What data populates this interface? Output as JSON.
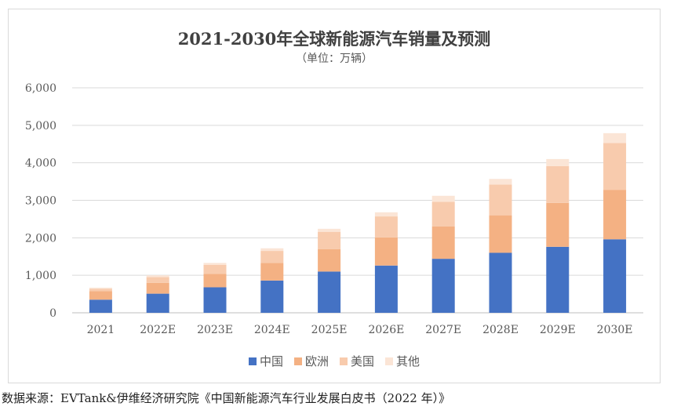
{
  "source_note": "数据来源：EVTank&伊维经济研究院《中国新能源汽车行业发展白皮书（2022 年）》",
  "colors": {
    "china": "#4472C4",
    "europe": "#F4B183",
    "usa": "#F8CBAD",
    "other": "#FBE5D6",
    "grid": "#d9d9d9",
    "axis": "#bfbfbf"
  },
  "chart_data": {
    "type": "bar",
    "stacked": true,
    "title": "2021-2030年全球新能源汽车销量及预测",
    "subtitle": "（单位：万辆）",
    "xlabel": "",
    "ylabel": "",
    "ylim": [
      0,
      6000
    ],
    "yticks": [
      0,
      1000,
      2000,
      3000,
      4000,
      5000,
      6000
    ],
    "ytick_labels": [
      "0",
      "1,000",
      "2,000",
      "3,000",
      "4,000",
      "5,000",
      "6,000"
    ],
    "grid": true,
    "legend_position": "bottom",
    "categories": [
      "2021",
      "2022E",
      "2023E",
      "2024E",
      "2025E",
      "2026E",
      "2027E",
      "2028E",
      "2029E",
      "2030E"
    ],
    "series": [
      {
        "name": "中国",
        "color_key": "china",
        "values": [
          350,
          510,
          680,
          860,
          1100,
          1260,
          1440,
          1600,
          1760,
          1960
        ]
      },
      {
        "name": "欧洲",
        "color_key": "europe",
        "values": [
          230,
          290,
          360,
          470,
          600,
          750,
          860,
          1000,
          1170,
          1320
        ]
      },
      {
        "name": "美国",
        "color_key": "usa",
        "values": [
          60,
          150,
          240,
          320,
          460,
          560,
          660,
          820,
          980,
          1250
        ]
      },
      {
        "name": "其他",
        "color_key": "other",
        "values": [
          30,
          50,
          50,
          70,
          80,
          110,
          160,
          150,
          190,
          260
        ]
      }
    ]
  }
}
